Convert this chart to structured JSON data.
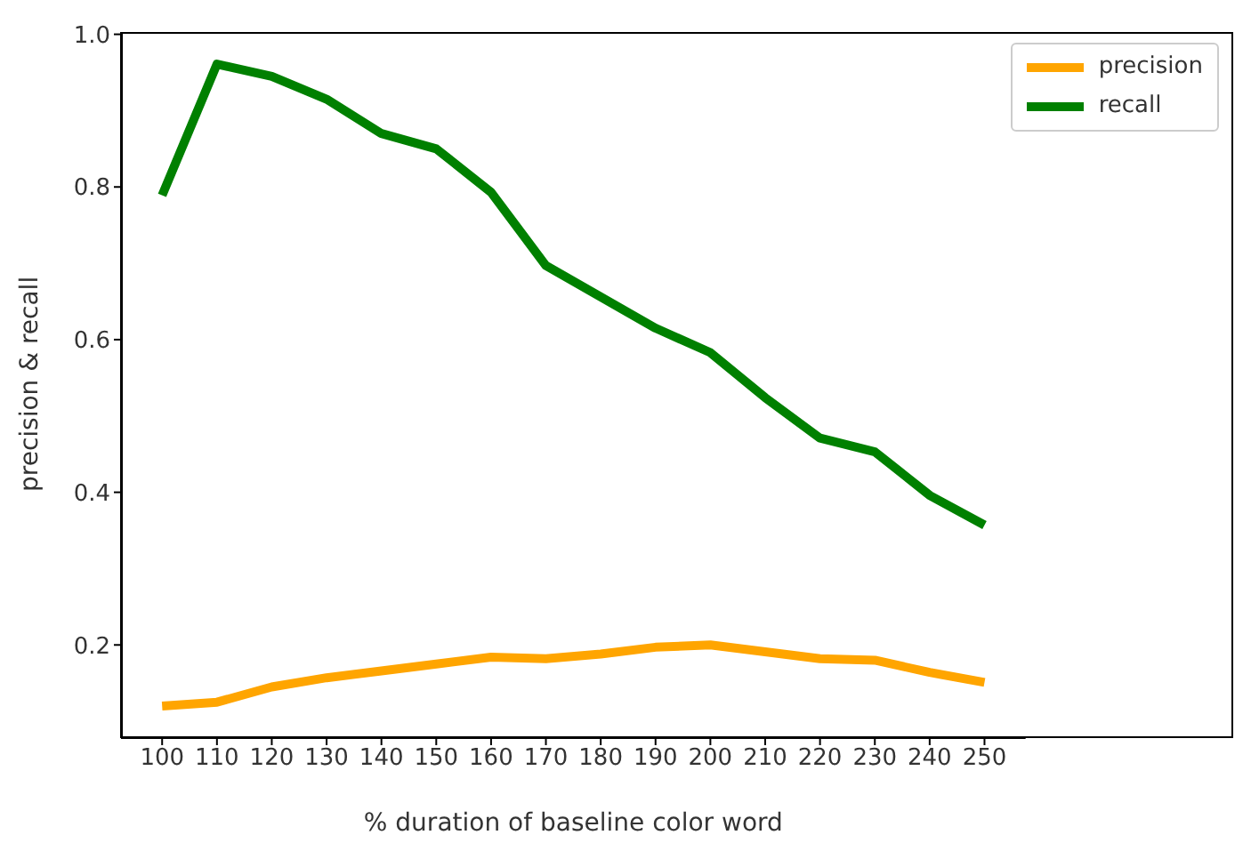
{
  "chart_data": {
    "type": "line",
    "xlabel": "% duration of baseline color word",
    "ylabel": "precision & recall",
    "x": [
      100,
      110,
      120,
      130,
      140,
      150,
      160,
      170,
      180,
      190,
      200,
      210,
      220,
      230,
      240,
      250
    ],
    "series": [
      {
        "name": "precision",
        "color": "#ffa500",
        "values": [
          0.12,
          0.125,
          0.145,
          0.157,
          0.166,
          0.175,
          0.184,
          0.182,
          0.188,
          0.197,
          0.2,
          0.191,
          0.182,
          0.18,
          0.164,
          0.151
        ]
      },
      {
        "name": "recall",
        "color": "#008000",
        "values": [
          0.789,
          0.961,
          0.945,
          0.915,
          0.87,
          0.85,
          0.793,
          0.697,
          0.656,
          0.615,
          0.583,
          0.524,
          0.471,
          0.453,
          0.396,
          0.357
        ]
      }
    ],
    "xlim": [
      92.5,
      257.5
    ],
    "xticks": [
      100,
      110,
      120,
      130,
      140,
      150,
      160,
      170,
      180,
      190,
      200,
      210,
      220,
      230,
      240,
      250
    ],
    "ylim": [
      0.078,
      1.003
    ],
    "yticks": [
      0.2,
      0.4,
      0.6,
      0.8,
      {
        "value": 1,
        "label": "1.0"
      }
    ],
    "grid": false,
    "legend": "top right",
    "marker": "none",
    "line_style": "solid"
  }
}
